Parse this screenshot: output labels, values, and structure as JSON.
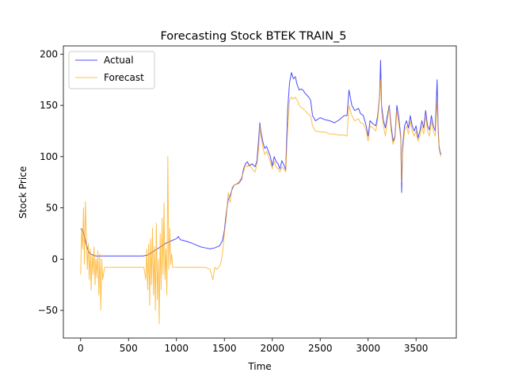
{
  "chart_data": {
    "type": "line",
    "title": "Forecasting Stock BTEK TRAIN_5",
    "xlabel": "Time",
    "ylabel": "Stock Price",
    "xlim": [
      -180,
      3920
    ],
    "ylim": [
      -77,
      208
    ],
    "xticks": [
      0,
      500,
      1000,
      1500,
      2000,
      2500,
      3000,
      3500
    ],
    "yticks": [
      -50,
      0,
      50,
      100,
      150,
      200
    ],
    "grid": false,
    "legend_position": "top-left",
    "series": [
      {
        "name": "Actual",
        "color": "#0000ff",
        "points": [
          [
            0,
            30
          ],
          [
            20,
            28
          ],
          [
            40,
            22
          ],
          [
            60,
            14
          ],
          [
            80,
            8
          ],
          [
            100,
            5
          ],
          [
            130,
            4
          ],
          [
            160,
            3
          ],
          [
            200,
            3
          ],
          [
            300,
            3
          ],
          [
            400,
            3
          ],
          [
            500,
            3
          ],
          [
            600,
            3
          ],
          [
            650,
            3
          ],
          [
            700,
            4
          ],
          [
            750,
            7
          ],
          [
            800,
            10
          ],
          [
            850,
            13
          ],
          [
            880,
            15
          ],
          [
            900,
            16
          ],
          [
            950,
            18
          ],
          [
            1000,
            20
          ],
          [
            1020,
            22
          ],
          [
            1040,
            19
          ],
          [
            1080,
            18
          ],
          [
            1150,
            16
          ],
          [
            1200,
            14
          ],
          [
            1250,
            12
          ],
          [
            1300,
            11
          ],
          [
            1350,
            10
          ],
          [
            1400,
            11
          ],
          [
            1450,
            13
          ],
          [
            1480,
            18
          ],
          [
            1500,
            28
          ],
          [
            1520,
            45
          ],
          [
            1540,
            58
          ],
          [
            1560,
            62
          ],
          [
            1580,
            68
          ],
          [
            1600,
            72
          ],
          [
            1620,
            73
          ],
          [
            1650,
            74
          ],
          [
            1680,
            78
          ],
          [
            1700,
            88
          ],
          [
            1720,
            93
          ],
          [
            1740,
            95
          ],
          [
            1760,
            91
          ],
          [
            1790,
            93
          ],
          [
            1820,
            90
          ],
          [
            1840,
            96
          ],
          [
            1860,
            120
          ],
          [
            1870,
            133
          ],
          [
            1880,
            125
          ],
          [
            1900,
            115
          ],
          [
            1920,
            108
          ],
          [
            1940,
            110
          ],
          [
            1960,
            105
          ],
          [
            1980,
            100
          ],
          [
            2000,
            91
          ],
          [
            2020,
            100
          ],
          [
            2040,
            95
          ],
          [
            2060,
            93
          ],
          [
            2080,
            88
          ],
          [
            2100,
            96
          ],
          [
            2120,
            92
          ],
          [
            2140,
            87
          ],
          [
            2160,
            145
          ],
          [
            2180,
            172
          ],
          [
            2200,
            182
          ],
          [
            2220,
            176
          ],
          [
            2240,
            178
          ],
          [
            2260,
            170
          ],
          [
            2280,
            165
          ],
          [
            2300,
            166
          ],
          [
            2320,
            165
          ],
          [
            2340,
            162
          ],
          [
            2360,
            160
          ],
          [
            2380,
            158
          ],
          [
            2400,
            155
          ],
          [
            2420,
            140
          ],
          [
            2450,
            135
          ],
          [
            2500,
            138
          ],
          [
            2550,
            136
          ],
          [
            2600,
            135
          ],
          [
            2650,
            133
          ],
          [
            2700,
            136
          ],
          [
            2750,
            140
          ],
          [
            2780,
            140
          ],
          [
            2800,
            165
          ],
          [
            2830,
            150
          ],
          [
            2860,
            145
          ],
          [
            2900,
            147
          ],
          [
            2920,
            142
          ],
          [
            2950,
            140
          ],
          [
            2980,
            130
          ],
          [
            3000,
            120
          ],
          [
            3020,
            135
          ],
          [
            3050,
            132
          ],
          [
            3080,
            130
          ],
          [
            3100,
            140
          ],
          [
            3120,
            160
          ],
          [
            3130,
            194
          ],
          [
            3140,
            150
          ],
          [
            3160,
            135
          ],
          [
            3180,
            128
          ],
          [
            3200,
            140
          ],
          [
            3220,
            150
          ],
          [
            3240,
            130
          ],
          [
            3260,
            115
          ],
          [
            3280,
            120
          ],
          [
            3300,
            150
          ],
          [
            3320,
            138
          ],
          [
            3340,
            120
          ],
          [
            3350,
            65
          ],
          [
            3360,
            110
          ],
          [
            3380,
            130
          ],
          [
            3400,
            135
          ],
          [
            3420,
            128
          ],
          [
            3440,
            140
          ],
          [
            3460,
            130
          ],
          [
            3480,
            125
          ],
          [
            3500,
            130
          ],
          [
            3520,
            118
          ],
          [
            3540,
            125
          ],
          [
            3560,
            135
          ],
          [
            3580,
            128
          ],
          [
            3600,
            145
          ],
          [
            3620,
            130
          ],
          [
            3640,
            126
          ],
          [
            3660,
            140
          ],
          [
            3680,
            130
          ],
          [
            3700,
            125
          ],
          [
            3720,
            175
          ],
          [
            3730,
            130
          ],
          [
            3740,
            110
          ],
          [
            3750,
            105
          ],
          [
            3760,
            102
          ]
        ]
      },
      {
        "name": "Forecast",
        "color": "#ffa500",
        "points": [
          [
            0,
            -15
          ],
          [
            10,
            30
          ],
          [
            20,
            10
          ],
          [
            30,
            50
          ],
          [
            40,
            -5
          ],
          [
            50,
            56
          ],
          [
            60,
            20
          ],
          [
            70,
            -10
          ],
          [
            80,
            15
          ],
          [
            90,
            -20
          ],
          [
            100,
            10
          ],
          [
            110,
            -30
          ],
          [
            120,
            5
          ],
          [
            130,
            -15
          ],
          [
            140,
            12
          ],
          [
            150,
            -25
          ],
          [
            160,
            0
          ],
          [
            170,
            -18
          ],
          [
            180,
            8
          ],
          [
            190,
            -35
          ],
          [
            200,
            5
          ],
          [
            210,
            -50
          ],
          [
            220,
            0
          ],
          [
            230,
            -20
          ],
          [
            250,
            -8
          ],
          [
            300,
            -8
          ],
          [
            400,
            -8
          ],
          [
            500,
            -8
          ],
          [
            600,
            -8
          ],
          [
            660,
            -8
          ],
          [
            680,
            -20
          ],
          [
            690,
            10
          ],
          [
            700,
            -30
          ],
          [
            710,
            15
          ],
          [
            720,
            -45
          ],
          [
            730,
            20
          ],
          [
            740,
            -25
          ],
          [
            750,
            30
          ],
          [
            760,
            -35
          ],
          [
            770,
            12
          ],
          [
            780,
            -50
          ],
          [
            790,
            35
          ],
          [
            800,
            -40
          ],
          [
            810,
            0
          ],
          [
            820,
            -63
          ],
          [
            830,
            25
          ],
          [
            840,
            -30
          ],
          [
            850,
            40
          ],
          [
            860,
            -15
          ],
          [
            870,
            55
          ],
          [
            880,
            -20
          ],
          [
            890,
            10
          ],
          [
            900,
            -35
          ],
          [
            910,
            100
          ],
          [
            920,
            -10
          ],
          [
            930,
            30
          ],
          [
            940,
            -5
          ],
          [
            950,
            5
          ],
          [
            960,
            -8
          ],
          [
            1000,
            -8
          ],
          [
            1100,
            -8
          ],
          [
            1200,
            -8
          ],
          [
            1300,
            -8
          ],
          [
            1350,
            -10
          ],
          [
            1380,
            -20
          ],
          [
            1400,
            -8
          ],
          [
            1420,
            -10
          ],
          [
            1440,
            -8
          ],
          [
            1460,
            -5
          ],
          [
            1480,
            5
          ],
          [
            1500,
            25
          ],
          [
            1520,
            40
          ],
          [
            1540,
            65
          ],
          [
            1560,
            55
          ],
          [
            1580,
            70
          ],
          [
            1600,
            72
          ],
          [
            1620,
            73
          ],
          [
            1650,
            75
          ],
          [
            1680,
            80
          ],
          [
            1700,
            85
          ],
          [
            1720,
            92
          ],
          [
            1740,
            90
          ],
          [
            1760,
            93
          ],
          [
            1790,
            88
          ],
          [
            1820,
            85
          ],
          [
            1840,
            92
          ],
          [
            1860,
            110
          ],
          [
            1870,
            130
          ],
          [
            1880,
            120
          ],
          [
            1900,
            110
          ],
          [
            1920,
            102
          ],
          [
            1940,
            105
          ],
          [
            1960,
            100
          ],
          [
            1980,
            95
          ],
          [
            2000,
            88
          ],
          [
            2020,
            95
          ],
          [
            2040,
            90
          ],
          [
            2060,
            88
          ],
          [
            2080,
            85
          ],
          [
            2100,
            90
          ],
          [
            2120,
            88
          ],
          [
            2140,
            85
          ],
          [
            2160,
            125
          ],
          [
            2180,
            155
          ],
          [
            2200,
            158
          ],
          [
            2220,
            156
          ],
          [
            2240,
            158
          ],
          [
            2260,
            155
          ],
          [
            2280,
            150
          ],
          [
            2300,
            148
          ],
          [
            2320,
            147
          ],
          [
            2340,
            145
          ],
          [
            2360,
            143
          ],
          [
            2380,
            141
          ],
          [
            2400,
            140
          ],
          [
            2420,
            130
          ],
          [
            2450,
            125
          ],
          [
            2500,
            124
          ],
          [
            2550,
            124
          ],
          [
            2600,
            122
          ],
          [
            2650,
            122
          ],
          [
            2700,
            121
          ],
          [
            2750,
            121
          ],
          [
            2780,
            120
          ],
          [
            2800,
            150
          ],
          [
            2830,
            140
          ],
          [
            2860,
            135
          ],
          [
            2900,
            137
          ],
          [
            2920,
            133
          ],
          [
            2950,
            132
          ],
          [
            2980,
            125
          ],
          [
            3000,
            115
          ],
          [
            3020,
            130
          ],
          [
            3050,
            128
          ],
          [
            3080,
            125
          ],
          [
            3100,
            135
          ],
          [
            3120,
            160
          ],
          [
            3130,
            175
          ],
          [
            3140,
            145
          ],
          [
            3160,
            130
          ],
          [
            3180,
            120
          ],
          [
            3200,
            135
          ],
          [
            3220,
            148
          ],
          [
            3240,
            125
          ],
          [
            3260,
            112
          ],
          [
            3280,
            118
          ],
          [
            3300,
            145
          ],
          [
            3320,
            132
          ],
          [
            3340,
            118
          ],
          [
            3350,
            75
          ],
          [
            3360,
            105
          ],
          [
            3380,
            125
          ],
          [
            3400,
            130
          ],
          [
            3420,
            122
          ],
          [
            3440,
            135
          ],
          [
            3460,
            125
          ],
          [
            3480,
            120
          ],
          [
            3500,
            125
          ],
          [
            3520,
            115
          ],
          [
            3540,
            120
          ],
          [
            3560,
            130
          ],
          [
            3580,
            122
          ],
          [
            3600,
            140
          ],
          [
            3620,
            125
          ],
          [
            3640,
            120
          ],
          [
            3660,
            135
          ],
          [
            3680,
            125
          ],
          [
            3700,
            120
          ],
          [
            3720,
            155
          ],
          [
            3730,
            125
          ],
          [
            3740,
            108
          ],
          [
            3750,
            103
          ],
          [
            3760,
            100
          ]
        ]
      }
    ]
  }
}
